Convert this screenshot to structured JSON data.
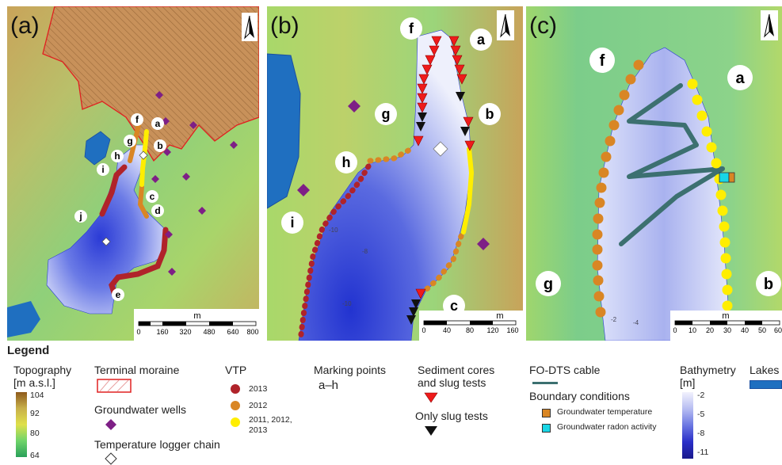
{
  "panels": {
    "a": {
      "label": "(a)",
      "points": [
        "a",
        "b",
        "c",
        "d",
        "e",
        "f",
        "g",
        "h",
        "i",
        "j"
      ],
      "scale": {
        "unit": "m",
        "ticks": [
          "0",
          "160",
          "320",
          "480",
          "640",
          "800"
        ]
      }
    },
    "b": {
      "label": "(b)",
      "points": [
        "f",
        "a",
        "g",
        "b",
        "h",
        "i",
        "c"
      ],
      "contours": [
        "-10",
        "-8",
        "-10"
      ],
      "scale": {
        "unit": "m",
        "ticks": [
          "0",
          "40",
          "80",
          "120",
          "160"
        ]
      }
    },
    "c": {
      "label": "(c)",
      "points": [
        "f",
        "a",
        "g",
        "b"
      ],
      "contours": [
        "-2",
        "-4"
      ],
      "scale": {
        "unit": "m",
        "ticks": [
          "0",
          "10",
          "20",
          "30",
          "40",
          "50",
          "60"
        ]
      }
    }
  },
  "legend": {
    "title": "Legend",
    "topography": {
      "title_line1": "Topography",
      "title_line2": "[m a.s.l.]",
      "ticks": [
        "104",
        "92",
        "80",
        "64"
      ]
    },
    "moraine": "Terminal moraine",
    "wells": "Groundwater wells",
    "logger": "Temperature logger chain",
    "vtp": {
      "title": "VTP",
      "items": [
        "2013",
        "2012",
        "2011, 2012,",
        "2013"
      ]
    },
    "marking": {
      "title": "Marking points",
      "range": "a–h"
    },
    "sediment": {
      "line1": "Sediment cores",
      "line2": "and slug tests",
      "only": "Only slug tests"
    },
    "fodts": "FO-DTS cable",
    "boundary": {
      "title": "Boundary conditions",
      "temp": "Groundwater temperature",
      "radon": "Groundwater radon activity"
    },
    "bathymetry": {
      "title_line1": "Bathymetry",
      "title_line2": "[m]",
      "ticks": [
        "-2",
        "-5",
        "-8",
        "-11"
      ]
    },
    "lakes": "Lakes"
  },
  "colors": {
    "vtp2013": "#b0232a",
    "vtp2012": "#d98624",
    "vtpMulti": "#ffee00",
    "wells": "#7e1f86",
    "cable": "#3c7070",
    "radon": "#19d6e6",
    "lakes": "#1f6fc0",
    "moraine": "#e02020"
  }
}
